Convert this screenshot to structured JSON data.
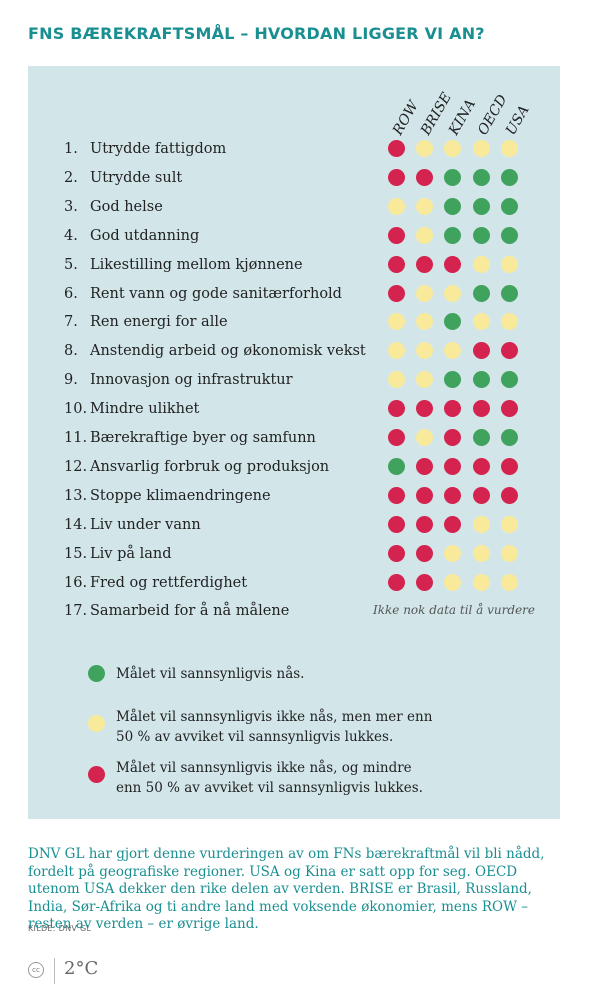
{
  "title": "FNS BÆREKRAFTSMÅL – HVORDAN LIGGER VI AN?",
  "colors": {
    "green": "#3fa35e",
    "yellow": "#f8ea9a",
    "red": "#d4234f",
    "accent": "#1a8f92",
    "panel": "#d2e6ea"
  },
  "chart_data": {
    "type": "table",
    "columns": [
      "ROW",
      "BRISE",
      "KINA",
      "OECD",
      "USA"
    ],
    "rows": [
      {
        "num": "1.",
        "label": "Utrydde fattigdom",
        "status": [
          "red",
          "yellow",
          "yellow",
          "yellow",
          "yellow"
        ]
      },
      {
        "num": "2.",
        "label": "Utrydde sult",
        "status": [
          "red",
          "red",
          "green",
          "green",
          "green"
        ]
      },
      {
        "num": "3.",
        "label": "God helse",
        "status": [
          "yellow",
          "yellow",
          "green",
          "green",
          "green"
        ]
      },
      {
        "num": "4.",
        "label": "God utdanning",
        "status": [
          "red",
          "yellow",
          "green",
          "green",
          "green"
        ]
      },
      {
        "num": "5.",
        "label": "Likestilling mellom kjønnene",
        "status": [
          "red",
          "red",
          "red",
          "yellow",
          "yellow"
        ]
      },
      {
        "num": "6.",
        "label": "Rent vann og gode sanitærforhold",
        "status": [
          "red",
          "yellow",
          "yellow",
          "green",
          "green"
        ]
      },
      {
        "num": "7.",
        "label": "Ren energi for alle",
        "status": [
          "yellow",
          "yellow",
          "green",
          "yellow",
          "yellow"
        ]
      },
      {
        "num": "8.",
        "label": "Anstendig arbeid og økonomisk vekst",
        "status": [
          "yellow",
          "yellow",
          "yellow",
          "red",
          "red"
        ]
      },
      {
        "num": "9.",
        "label": "Innovasjon og infrastruktur",
        "status": [
          "yellow",
          "yellow",
          "green",
          "green",
          "green"
        ]
      },
      {
        "num": "10.",
        "label": "Mindre ulikhet",
        "status": [
          "red",
          "red",
          "red",
          "red",
          "red"
        ]
      },
      {
        "num": "11.",
        "label": "Bærekraftige byer og samfunn",
        "status": [
          "red",
          "yellow",
          "red",
          "green",
          "green"
        ]
      },
      {
        "num": "12.",
        "label": "Ansvarlig forbruk og produksjon",
        "status": [
          "green",
          "red",
          "red",
          "red",
          "red"
        ]
      },
      {
        "num": "13.",
        "label": "Stoppe klimaendringene",
        "status": [
          "red",
          "red",
          "red",
          "red",
          "red"
        ]
      },
      {
        "num": "14.",
        "label": "Liv under vann",
        "status": [
          "red",
          "red",
          "red",
          "yellow",
          "yellow"
        ]
      },
      {
        "num": "15.",
        "label": "Liv på land",
        "status": [
          "red",
          "red",
          "yellow",
          "yellow",
          "yellow"
        ]
      },
      {
        "num": "16.",
        "label": "Fred og rettferdighet",
        "status": [
          "red",
          "red",
          "yellow",
          "yellow",
          "yellow"
        ]
      },
      {
        "num": "17.",
        "label": "Samarbeid for å nå målene",
        "status": []
      }
    ],
    "no_data_note": "Ikke nok data til å vurdere",
    "legend": [
      {
        "color": "green",
        "text": "Målet vil sannsynligvis nås."
      },
      {
        "color": "yellow",
        "text": "Målet vil sannsynligvis ikke nås, men mer enn 50 % av avviket vil sannsynligvis lukkes."
      },
      {
        "color": "red",
        "text": "Målet vil sannsynligvis ikke nås, og mindre enn 50 % av avviket vil sannsynligvis lukkes."
      }
    ]
  },
  "source_text": "DNV GL har gjort denne vurderingen av om FNs bærekraftmål vil bli nådd, fordelt på geografiske regioner. USA og Kina er satt opp for seg. OECD utenom USA dekker den rike delen av verden. BRISE er Brasil, Russland, India, Sør-Afrika og ti andre land med voksende økonomier, mens ROW – resten av verden – er øvrige land.",
  "kilde": "KILDE: DNV GL",
  "footer": {
    "cc": "cc",
    "logo": "2°C"
  }
}
